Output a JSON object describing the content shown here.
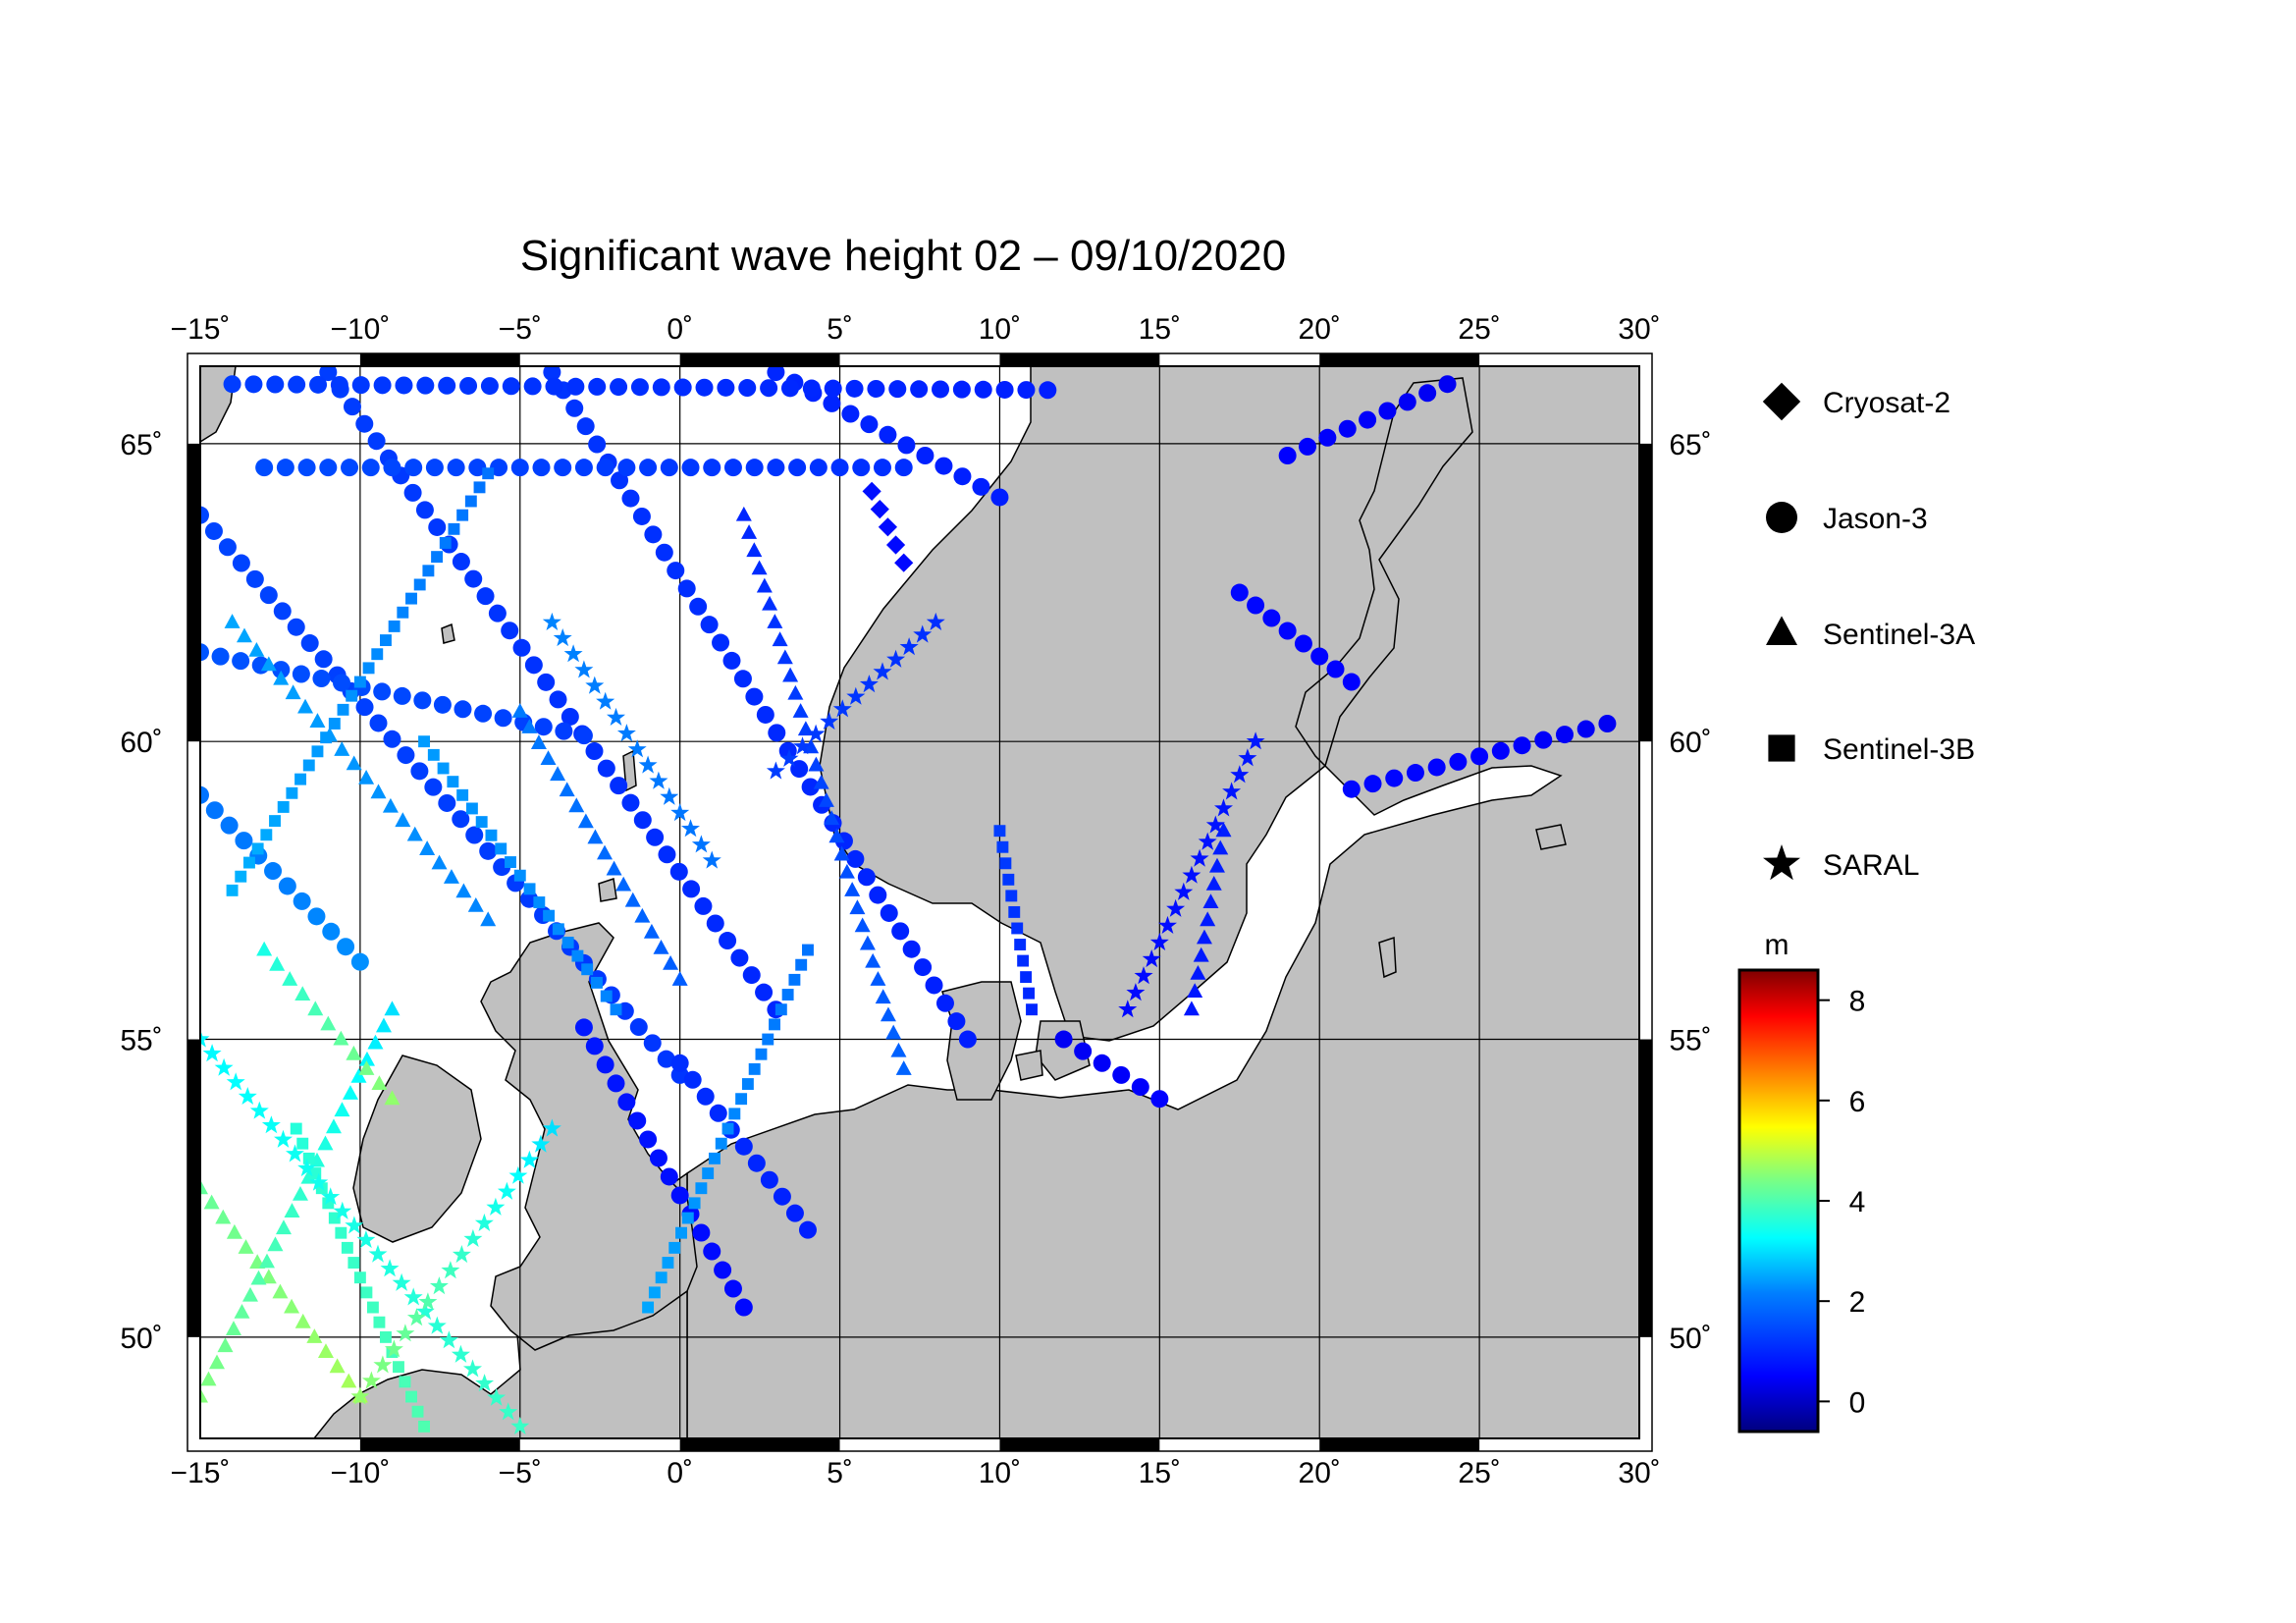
{
  "title": "Significant wave height 02 – 09/10/2020",
  "map": {
    "lon_range": [
      -15,
      30
    ],
    "lat_range": [
      48.3,
      66.3
    ],
    "lon_ticks": [
      {
        "value": -15,
        "label": "−15"
      },
      {
        "value": -10,
        "label": "−10"
      },
      {
        "value": -5,
        "label": "−5"
      },
      {
        "value": 0,
        "label": "0"
      },
      {
        "value": 5,
        "label": "5"
      },
      {
        "value": 10,
        "label": "10"
      },
      {
        "value": 15,
        "label": "15"
      },
      {
        "value": 20,
        "label": "20"
      },
      {
        "value": 25,
        "label": "25"
      },
      {
        "value": 30,
        "label": "30"
      }
    ],
    "lat_ticks": [
      {
        "value": 50,
        "label": "50"
      },
      {
        "value": 55,
        "label": "55"
      },
      {
        "value": 60,
        "label": "60"
      },
      {
        "value": 65,
        "label": "65"
      }
    ],
    "degree_symbol": "˚",
    "grid": true,
    "land_color": "#c0c0c0",
    "sea_color": "#ffffff"
  },
  "legend": {
    "placement": "right",
    "items": [
      {
        "label": "Cryosat-2",
        "marker": "diamond"
      },
      {
        "label": "Jason-3",
        "marker": "circle"
      },
      {
        "label": "Sentinel-3A",
        "marker": "triangle"
      },
      {
        "label": "Sentinel-3B",
        "marker": "square"
      },
      {
        "label": "SARAL",
        "marker": "star"
      }
    ]
  },
  "colorbar": {
    "unit": "m",
    "range": [
      -0.6,
      8.6
    ],
    "ticks": [
      {
        "value": 0,
        "label": "0"
      },
      {
        "value": 2,
        "label": "2"
      },
      {
        "value": 4,
        "label": "4"
      },
      {
        "value": 6,
        "label": "6"
      },
      {
        "value": 8,
        "label": "8"
      }
    ],
    "colors": [
      "#00007f",
      "#0000ff",
      "#007fff",
      "#00ffff",
      "#7fff7f",
      "#ffff00",
      "#ff7f00",
      "#ff0000",
      "#7f0000"
    ]
  },
  "chart_data": {
    "type": "scatter",
    "title": "Significant wave height 02 – 09/10/2020",
    "xlabel": "",
    "ylabel": "",
    "xlim": [
      -15,
      30
    ],
    "ylim": [
      48.3,
      66.3
    ],
    "colorbar_unit": "m",
    "series": [
      {
        "name": "Jason-3",
        "marker": "circle",
        "tracks": [
          {
            "start": [
              -15,
              63.8
            ],
            "end": [
              0,
              54.4
            ],
            "swh_start": 1.4,
            "swh_end": 1.2
          },
          {
            "start": [
              -11,
              66.2
            ],
            "end": [
              3,
              55.5
            ],
            "swh_start": 1.3,
            "swh_end": 1.0
          },
          {
            "start": [
              -4,
              66.2
            ],
            "end": [
              9,
              55.0
            ],
            "swh_start": 1.2,
            "swh_end": 0.9
          },
          {
            "start": [
              3,
              66.2
            ],
            "end": [
              10,
              64.1
            ],
            "swh_start": 1.0,
            "swh_end": 0.9
          },
          {
            "start": [
              -15,
              59.1
            ],
            "end": [
              -10,
              56.3
            ],
            "swh_start": 2.0,
            "swh_end": 2.3
          },
          {
            "start": [
              -14,
              66.0
            ],
            "end": [
              11.5,
              65.9
            ],
            "swh_start": 1.3,
            "swh_end": 0.9
          },
          {
            "start": [
              -13,
              64.6
            ],
            "end": [
              7,
              64.6
            ],
            "swh_start": 1.5,
            "swh_end": 1.1
          },
          {
            "start": [
              -15,
              61.5
            ],
            "end": [
              -3,
              60.1
            ],
            "swh_start": 1.6,
            "swh_end": 1.3
          },
          {
            "start": [
              19,
              64.8
            ],
            "end": [
              24,
              66.0
            ],
            "swh_start": 0.5,
            "swh_end": 0.4
          },
          {
            "start": [
              17.5,
              62.5
            ],
            "end": [
              21,
              61.0
            ],
            "swh_start": 0.6,
            "swh_end": 0.5
          },
          {
            "start": [
              21,
              59.2
            ],
            "end": [
              29,
              60.3
            ],
            "swh_start": 0.6,
            "swh_end": 0.4
          },
          {
            "start": [
              -3,
              55.2
            ],
            "end": [
              2,
              50.5
            ],
            "swh_start": 0.8,
            "swh_end": 0.6
          },
          {
            "start": [
              0,
              54.6
            ],
            "end": [
              4,
              51.8
            ],
            "swh_start": 1.1,
            "swh_end": 0.9
          },
          {
            "start": [
              12,
              55.0
            ],
            "end": [
              15,
              54.0
            ],
            "swh_start": 0.4,
            "swh_end": 0.5
          }
        ]
      },
      {
        "name": "Sentinel-3A",
        "marker": "triangle",
        "tracks": [
          {
            "start": [
              -15,
              52.5
            ],
            "end": [
              -10,
              49.0
            ],
            "swh_start": 4.2,
            "swh_end": 4.8
          },
          {
            "start": [
              -15,
              49.0
            ],
            "end": [
              -9,
              55.5
            ],
            "swh_start": 4.5,
            "swh_end": 3.0
          },
          {
            "start": [
              -13,
              56.5
            ],
            "end": [
              -9,
              54.0
            ],
            "swh_start": 3.5,
            "swh_end": 4.6
          },
          {
            "start": [
              -14,
              62.0
            ],
            "end": [
              -6,
              57.0
            ],
            "swh_start": 2.5,
            "swh_end": 2.2
          },
          {
            "start": [
              2,
              63.8
            ],
            "end": [
              7,
              54.5
            ],
            "swh_start": 1.0,
            "swh_end": 1.8
          },
          {
            "start": [
              17,
              58.5
            ],
            "end": [
              16,
              55.5
            ],
            "swh_start": 0.9,
            "swh_end": 0.8
          },
          {
            "start": [
              -5,
              60.5
            ],
            "end": [
              0,
              56.0
            ],
            "swh_start": 2.1,
            "swh_end": 1.7
          }
        ]
      },
      {
        "name": "Sentinel-3B",
        "marker": "square",
        "tracks": [
          {
            "start": [
              -12,
              53.5
            ],
            "end": [
              -8,
              48.5
            ],
            "swh_start": 3.6,
            "swh_end": 4.0
          },
          {
            "start": [
              -14,
              57.5
            ],
            "end": [
              -6,
              64.5
            ],
            "swh_start": 2.6,
            "swh_end": 2.0
          },
          {
            "start": [
              4,
              56.5
            ],
            "end": [
              -1,
              50.5
            ],
            "swh_start": 2.0,
            "swh_end": 2.5
          },
          {
            "start": [
              10,
              58.5
            ],
            "end": [
              11,
              55.5
            ],
            "swh_start": 1.3,
            "swh_end": 1.0
          },
          {
            "start": [
              -8,
              60.0
            ],
            "end": [
              -2,
              55.5
            ],
            "swh_start": 2.4,
            "swh_end": 2.2
          }
        ]
      },
      {
        "name": "SARAL",
        "marker": "star",
        "tracks": [
          {
            "start": [
              -15,
              55.0
            ],
            "end": [
              -5,
              48.5
            ],
            "swh_start": 3.2,
            "swh_end": 3.8
          },
          {
            "start": [
              -10,
              49.0
            ],
            "end": [
              -4,
              53.5
            ],
            "swh_start": 4.6,
            "swh_end": 3.0
          },
          {
            "start": [
              3,
              59.5
            ],
            "end": [
              8,
              62.0
            ],
            "swh_start": 1.3,
            "swh_end": 1.1
          },
          {
            "start": [
              18,
              60.0
            ],
            "end": [
              14,
              55.5
            ],
            "swh_start": 0.8,
            "swh_end": 0.6
          },
          {
            "start": [
              -4,
              62.0
            ],
            "end": [
              1,
              58.0
            ],
            "swh_start": 2.2,
            "swh_end": 2.0
          }
        ]
      },
      {
        "name": "Cryosat-2",
        "marker": "diamond",
        "tracks": [
          {
            "start": [
              6,
              64.2
            ],
            "end": [
              7,
              63.0
            ],
            "swh_start": 0.7,
            "swh_end": 0.6
          }
        ]
      }
    ]
  }
}
